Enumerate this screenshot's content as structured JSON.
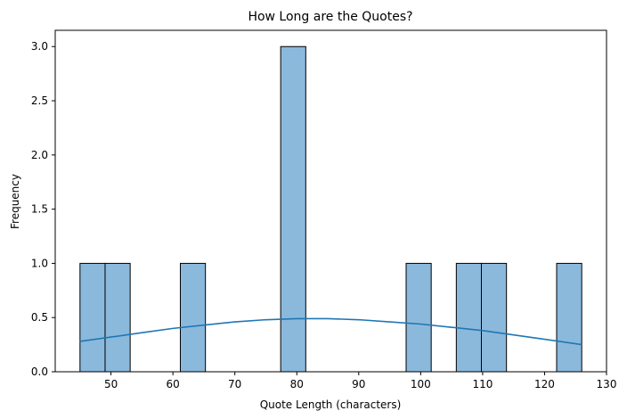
{
  "chart_data": {
    "type": "bar",
    "subtype": "histogram",
    "title": "How Long are the Quotes?",
    "xlabel": "Quote Length (characters)",
    "ylabel": "Frequency",
    "xlim": [
      41,
      130
    ],
    "ylim": [
      0,
      3.15
    ],
    "xticks": [
      50,
      60,
      70,
      80,
      90,
      100,
      110,
      120,
      130
    ],
    "yticks": [
      0.0,
      0.5,
      1.0,
      1.5,
      2.0,
      2.5,
      3.0
    ],
    "ytick_labels": [
      "0.0",
      "0.5",
      "1.0",
      "1.5",
      "2.0",
      "2.5",
      "3.0"
    ],
    "bins": [
      {
        "x0": 45.0,
        "x1": 49.05,
        "count": 1
      },
      {
        "x0": 49.05,
        "x1": 53.1,
        "count": 1
      },
      {
        "x0": 61.2,
        "x1": 65.25,
        "count": 1
      },
      {
        "x0": 77.4,
        "x1": 81.45,
        "count": 3
      },
      {
        "x0": 97.65,
        "x1": 101.7,
        "count": 1
      },
      {
        "x0": 105.75,
        "x1": 109.8,
        "count": 1
      },
      {
        "x0": 109.8,
        "x1": 113.85,
        "count": 1
      },
      {
        "x0": 121.95,
        "x1": 126.0,
        "count": 1
      }
    ],
    "kde": {
      "x": [
        45,
        50,
        55,
        60,
        65,
        70,
        75,
        80,
        81,
        85,
        90,
        95,
        100,
        105,
        110,
        115,
        120,
        126
      ],
      "y": [
        0.28,
        0.32,
        0.36,
        0.4,
        0.43,
        0.46,
        0.48,
        0.49,
        0.49,
        0.49,
        0.48,
        0.46,
        0.44,
        0.41,
        0.38,
        0.34,
        0.3,
        0.25
      ]
    },
    "grid": false,
    "colors": {
      "bar_fill": "#8bb9dc",
      "bar_edge": "#000000",
      "kde_line": "#1f77b4"
    }
  }
}
